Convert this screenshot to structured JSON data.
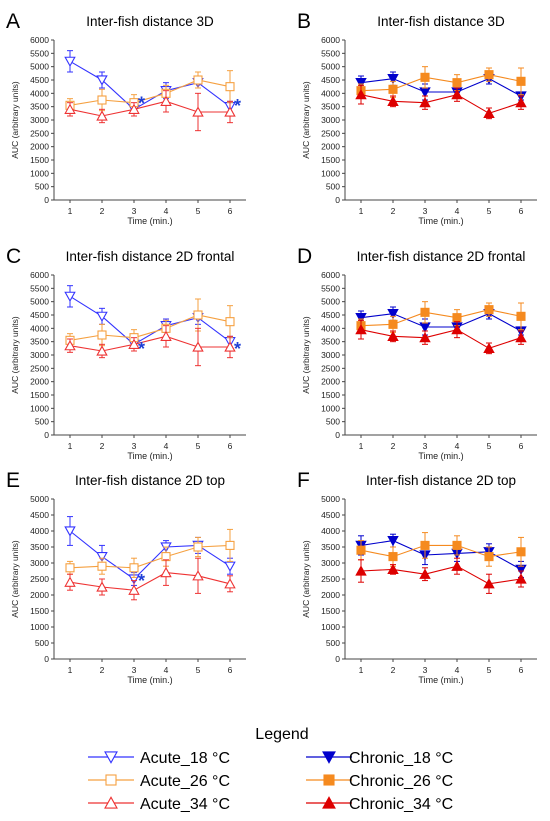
{
  "legend": {
    "title": "Legend",
    "entries": [
      {
        "label": "Acute_18 °C",
        "color": "#3333ff",
        "marker": "triangle-down",
        "filled": false
      },
      {
        "label": "Chronic_18 °C",
        "color": "#0000cc",
        "marker": "triangle-down",
        "filled": true
      },
      {
        "label": "Acute_26 °C",
        "color": "#f5a040",
        "marker": "square",
        "filled": false
      },
      {
        "label": "Chronic_26 °C",
        "color": "#f58a1f",
        "marker": "square",
        "filled": true
      },
      {
        "label": "Acute_34 °C",
        "color": "#ee3333",
        "marker": "triangle-up",
        "filled": false
      },
      {
        "label": "Chronic_34 °C",
        "color": "#dd0000",
        "marker": "triangle-up",
        "filled": true
      }
    ]
  },
  "chart_data": [
    {
      "panel": "A",
      "type": "line",
      "title": "Inter-fish distance 3D",
      "xlabel": "Time (min.)",
      "ylabel": "AUC (arbitrary units)",
      "x": [
        1,
        2,
        3,
        4,
        5,
        6
      ],
      "ylim": [
        0,
        6000
      ],
      "yticks": [
        0,
        500,
        1000,
        1500,
        2000,
        2500,
        3000,
        3500,
        4000,
        4500,
        5000,
        5500,
        6000
      ],
      "significance_marks": [
        {
          "x": 3,
          "y": 3700,
          "text": "*"
        },
        {
          "x": 6,
          "y": 3600,
          "text": "*"
        }
      ],
      "series": [
        {
          "name": "Acute_18 °C",
          "values": [
            5200,
            4500,
            3400,
            4100,
            4400,
            3500
          ],
          "errors": [
            400,
            300,
            100,
            300,
            200,
            200
          ]
        },
        {
          "name": "Acute_26 °C",
          "values": [
            3550,
            3750,
            3650,
            4000,
            4500,
            4250
          ],
          "errors": [
            250,
            400,
            300,
            300,
            300,
            600
          ]
        },
        {
          "name": "Acute_34 °C",
          "values": [
            3400,
            3150,
            3400,
            3700,
            3300,
            3300
          ],
          "errors": [
            250,
            250,
            250,
            400,
            700,
            400
          ]
        }
      ]
    },
    {
      "panel": "B",
      "type": "line",
      "title": "Inter-fish distance 3D",
      "xlabel": "Time (min.)",
      "ylabel": "AUC (arbitrary units)",
      "x": [
        1,
        2,
        3,
        4,
        5,
        6
      ],
      "ylim": [
        0,
        6000
      ],
      "yticks": [
        0,
        500,
        1000,
        1500,
        2000,
        2500,
        3000,
        3500,
        4000,
        4500,
        5000,
        5500,
        6000
      ],
      "series": [
        {
          "name": "Chronic_18 °C",
          "values": [
            4400,
            4550,
            4050,
            4050,
            4550,
            3900
          ],
          "errors": [
            250,
            250,
            300,
            200,
            200,
            150
          ]
        },
        {
          "name": "Chronic_26 °C",
          "values": [
            4100,
            4150,
            4600,
            4400,
            4700,
            4450
          ],
          "errors": [
            250,
            300,
            400,
            300,
            250,
            500
          ]
        },
        {
          "name": "Chronic_34 °C",
          "values": [
            3950,
            3700,
            3650,
            3950,
            3250,
            3650
          ],
          "errors": [
            350,
            200,
            250,
            250,
            200,
            250
          ]
        }
      ]
    },
    {
      "panel": "C",
      "type": "line",
      "title": "Inter-fish distance 2D frontal",
      "xlabel": "Time (min.)",
      "ylabel": "AUC (arbitrary units)",
      "x": [
        1,
        2,
        3,
        4,
        5,
        6
      ],
      "ylim": [
        0,
        6000
      ],
      "yticks": [
        0,
        500,
        1000,
        1500,
        2000,
        2500,
        3000,
        3500,
        4000,
        4500,
        5000,
        5500,
        6000
      ],
      "significance_marks": [
        {
          "x": 3,
          "y": 3300,
          "text": "*"
        },
        {
          "x": 6,
          "y": 3300,
          "text": "*"
        }
      ],
      "series": [
        {
          "name": "Acute_18 °C",
          "values": [
            5200,
            4450,
            3400,
            4100,
            4400,
            3500
          ],
          "errors": [
            400,
            300,
            150,
            250,
            250,
            200
          ]
        },
        {
          "name": "Acute_26 °C",
          "values": [
            3550,
            3750,
            3650,
            4000,
            4500,
            4250
          ],
          "errors": [
            250,
            400,
            300,
            300,
            600,
            600
          ]
        },
        {
          "name": "Acute_34 °C",
          "values": [
            3350,
            3150,
            3400,
            3700,
            3300,
            3300
          ],
          "errors": [
            250,
            250,
            250,
            400,
            700,
            400
          ]
        }
      ]
    },
    {
      "panel": "D",
      "type": "line",
      "title": "Inter-fish distance 2D frontal",
      "xlabel": "Time (min.)",
      "ylabel": "AUC (arbitrary units)",
      "x": [
        1,
        2,
        3,
        4,
        5,
        6
      ],
      "ylim": [
        0,
        6000
      ],
      "yticks": [
        0,
        500,
        1000,
        1500,
        2000,
        2500,
        3000,
        3500,
        4000,
        4500,
        5000,
        5500,
        6000
      ],
      "series": [
        {
          "name": "Chronic_18 °C",
          "values": [
            4400,
            4550,
            4050,
            4050,
            4550,
            3900
          ],
          "errors": [
            250,
            250,
            300,
            200,
            200,
            150
          ]
        },
        {
          "name": "Chronic_26 °C",
          "values": [
            4100,
            4150,
            4600,
            4400,
            4700,
            4450
          ],
          "errors": [
            250,
            300,
            400,
            300,
            250,
            500
          ]
        },
        {
          "name": "Chronic_34 °C",
          "values": [
            3950,
            3700,
            3650,
            3950,
            3250,
            3650
          ],
          "errors": [
            350,
            200,
            250,
            300,
            200,
            250
          ]
        }
      ]
    },
    {
      "panel": "E",
      "type": "line",
      "title": "Inter-fish distance 2D top",
      "xlabel": "Time (min.)",
      "ylabel": "AUC (arbitrary units)",
      "x": [
        1,
        2,
        3,
        4,
        5,
        6
      ],
      "ylim": [
        0,
        5000
      ],
      "yticks": [
        0,
        500,
        1000,
        1500,
        2000,
        2500,
        3000,
        3500,
        4000,
        4500,
        5000
      ],
      "significance_marks": [
        {
          "x": 3,
          "y": 2500,
          "text": "*"
        }
      ],
      "series": [
        {
          "name": "Acute_18 °C",
          "values": [
            4000,
            3200,
            2500,
            3500,
            3550,
            2900
          ],
          "errors": [
            450,
            350,
            200,
            200,
            250,
            250
          ]
        },
        {
          "name": "Acute_26 °C",
          "values": [
            2850,
            2900,
            2850,
            3200,
            3500,
            3550
          ],
          "errors": [
            200,
            250,
            300,
            300,
            300,
            500
          ]
        },
        {
          "name": "Acute_34 °C",
          "values": [
            2400,
            2250,
            2150,
            2700,
            2600,
            2350
          ],
          "errors": [
            250,
            250,
            300,
            400,
            550,
            250
          ]
        }
      ]
    },
    {
      "panel": "F",
      "type": "line",
      "title": "Inter-fish distance 2D top",
      "xlabel": "Time (min.)",
      "ylabel": "AUC (arbitrary units)",
      "x": [
        1,
        2,
        3,
        4,
        5,
        6
      ],
      "ylim": [
        0,
        5000
      ],
      "yticks": [
        0,
        500,
        1000,
        1500,
        2000,
        2500,
        3000,
        3500,
        4000,
        4500,
        5000
      ],
      "series": [
        {
          "name": "Chronic_18 °C",
          "values": [
            3550,
            3700,
            3250,
            3300,
            3350,
            2800
          ],
          "errors": [
            300,
            200,
            300,
            250,
            250,
            250
          ]
        },
        {
          "name": "Chronic_26 °C",
          "values": [
            3400,
            3200,
            3550,
            3550,
            3200,
            3350
          ],
          "errors": [
            300,
            300,
            400,
            300,
            300,
            450
          ]
        },
        {
          "name": "Chronic_34 °C",
          "values": [
            2750,
            2800,
            2650,
            2900,
            2350,
            2500
          ],
          "errors": [
            350,
            150,
            200,
            250,
            300,
            250
          ]
        }
      ]
    }
  ]
}
